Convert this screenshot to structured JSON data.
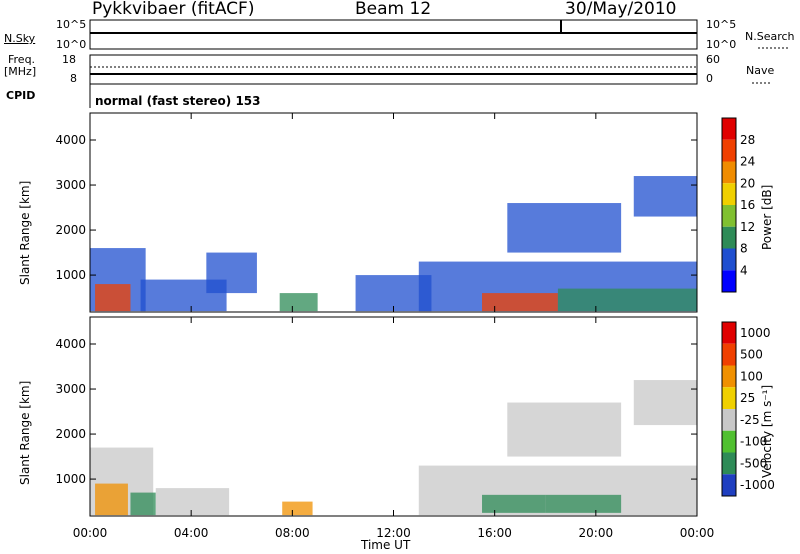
{
  "header": {
    "station": "Pykkvibaer (fitACF)",
    "beam": "Beam 12",
    "date": "30/May/2010"
  },
  "strips": {
    "nsky_label": "N.Sky",
    "nsky_ticks": [
      "10^5",
      "10^0"
    ],
    "nsearch_label": "N.Search",
    "nsearch_ticks": [
      "10^5",
      "10^0"
    ],
    "freq_label": "Freq.",
    "freq_unit": "[MHz]",
    "freq_ticks": [
      "18",
      "8"
    ],
    "nave_label": "Nave",
    "nave_ticks": [
      "60",
      "0"
    ],
    "cpid_label": "CPID",
    "cpid_text": "normal (fast stereo) 153"
  },
  "chart_data": [
    {
      "type": "heatmap",
      "name_printed": "Power",
      "ylabel": "Slant Range [km]",
      "xlabel": "Time UT",
      "x_ticks": [
        "00:00",
        "04:00",
        "08:00",
        "12:00",
        "16:00",
        "20:00",
        "00:00"
      ],
      "y_ticks": [
        1000,
        2000,
        3000,
        4000
      ],
      "ylim": [
        180,
        4600
      ],
      "xlim_hours": [
        0,
        24
      ],
      "colorbar_label": "Power [dB]",
      "colorbar_ticks": [
        4,
        8,
        12,
        16,
        20,
        24,
        28
      ],
      "colorbar_colors": [
        "#0000ff",
        "#1f4fcf",
        "#2e8b57",
        "#80c030",
        "#f0d000",
        "#f08c00",
        "#f04000",
        "#e00000"
      ],
      "regions": [
        {
          "t0": 0.0,
          "t1": 2.2,
          "r0": 200,
          "r1": 1600,
          "level": "low"
        },
        {
          "t0": 0.2,
          "t1": 1.6,
          "r0": 200,
          "r1": 800,
          "level": "high"
        },
        {
          "t0": 2.0,
          "t1": 5.4,
          "r0": 200,
          "r1": 900,
          "level": "low"
        },
        {
          "t0": 4.6,
          "t1": 6.6,
          "r0": 600,
          "r1": 1500,
          "level": "low"
        },
        {
          "t0": 7.5,
          "t1": 9.0,
          "r0": 200,
          "r1": 600,
          "level": "mid"
        },
        {
          "t0": 10.5,
          "t1": 13.5,
          "r0": 200,
          "r1": 1000,
          "level": "low"
        },
        {
          "t0": 13.0,
          "t1": 24.0,
          "r0": 200,
          "r1": 1300,
          "level": "low"
        },
        {
          "t0": 15.5,
          "t1": 18.5,
          "r0": 200,
          "r1": 600,
          "level": "high"
        },
        {
          "t0": 18.5,
          "t1": 24.0,
          "r0": 200,
          "r1": 700,
          "level": "mid"
        },
        {
          "t0": 16.5,
          "t1": 21.0,
          "r0": 1500,
          "r1": 2600,
          "level": "low"
        },
        {
          "t0": 21.5,
          "t1": 24.0,
          "r0": 2300,
          "r1": 3200,
          "level": "low"
        }
      ]
    },
    {
      "type": "heatmap",
      "name_printed": "Velocity",
      "ylabel": "Slant Range [km]",
      "xlabel": "Time UT",
      "x_ticks": [
        "00:00",
        "04:00",
        "08:00",
        "12:00",
        "16:00",
        "20:00",
        "00:00"
      ],
      "y_ticks": [
        1000,
        2000,
        3000,
        4000
      ],
      "ylim": [
        180,
        4600
      ],
      "xlim_hours": [
        0,
        24
      ],
      "colorbar_label": "Velocity [m s⁻¹]",
      "colorbar_ticks": [
        "1000",
        "500",
        "100",
        "25",
        "-25",
        "-100",
        "-500",
        "-1000"
      ],
      "colorbar_colors": [
        "#1f3fc0",
        "#2e8b57",
        "#50c030",
        "#c8c8c8",
        "#f0d000",
        "#f09000",
        "#f04000",
        "#e00000"
      ],
      "regions": [
        {
          "t0": 0.0,
          "t1": 2.5,
          "r0": 200,
          "r1": 1700,
          "level": "gray"
        },
        {
          "t0": 0.2,
          "t1": 1.5,
          "r0": 200,
          "r1": 900,
          "level": "orange"
        },
        {
          "t0": 1.6,
          "t1": 2.6,
          "r0": 200,
          "r1": 700,
          "level": "green"
        },
        {
          "t0": 2.6,
          "t1": 5.5,
          "r0": 200,
          "r1": 800,
          "level": "gray"
        },
        {
          "t0": 7.6,
          "t1": 8.8,
          "r0": 200,
          "r1": 500,
          "level": "orange"
        },
        {
          "t0": 13.0,
          "t1": 24.0,
          "r0": 200,
          "r1": 1300,
          "level": "gray"
        },
        {
          "t0": 15.5,
          "t1": 18.0,
          "r0": 250,
          "r1": 650,
          "level": "green"
        },
        {
          "t0": 18.0,
          "t1": 21.0,
          "r0": 250,
          "r1": 650,
          "level": "green"
        },
        {
          "t0": 16.5,
          "t1": 21.0,
          "r0": 1500,
          "r1": 2700,
          "level": "gray"
        },
        {
          "t0": 21.5,
          "t1": 24.0,
          "r0": 2200,
          "r1": 3200,
          "level": "gray"
        }
      ]
    }
  ]
}
